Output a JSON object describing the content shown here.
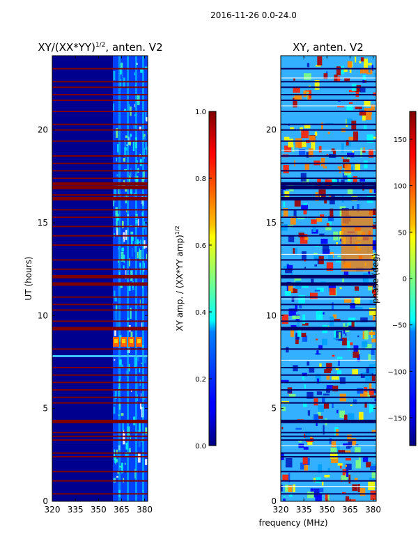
{
  "figure_title": "2016-11-26 0.0-24.0",
  "chart_data": [
    {
      "type": "heatmap",
      "title_main": "XY/(XX*YY)",
      "title_sup": "1/2",
      "title_rest": ", anten. V2",
      "xlabel": "",
      "ylabel": "UT (hours)",
      "xlim": [
        320,
        382
      ],
      "ylim": [
        0,
        24
      ],
      "xticks": [
        320,
        335,
        350,
        365,
        380
      ],
      "yticks": [
        0,
        5,
        10,
        15,
        20
      ],
      "colormap": "jet",
      "colorbar": {
        "label_main": "XY amp. / (XX*YY amp)",
        "label_sup": "1/2",
        "range": [
          0.0,
          1.0
        ],
        "ticks": [
          "0.0",
          "0.2",
          "0.4",
          "0.6",
          "0.8",
          "1.0"
        ]
      }
    },
    {
      "type": "heatmap",
      "title": "XY, anten. V2",
      "xlabel": "frequency (MHz)",
      "ylabel": "",
      "xlim": [
        320,
        382
      ],
      "ylim": [
        0,
        24
      ],
      "xticks": [
        320,
        335,
        350,
        365,
        380
      ],
      "yticks": [
        0,
        5,
        10,
        15,
        20
      ],
      "colormap": "jet",
      "colorbar": {
        "label": "phase (deg)",
        "range": [
          -180,
          180
        ],
        "ticks": [
          "150",
          "100",
          "50",
          "0",
          "−50",
          "−100",
          "−150"
        ]
      }
    }
  ],
  "colors": {
    "jet_low": "#00007f",
    "jet_high": "#7f0000",
    "flag_red": "#7f0000"
  }
}
